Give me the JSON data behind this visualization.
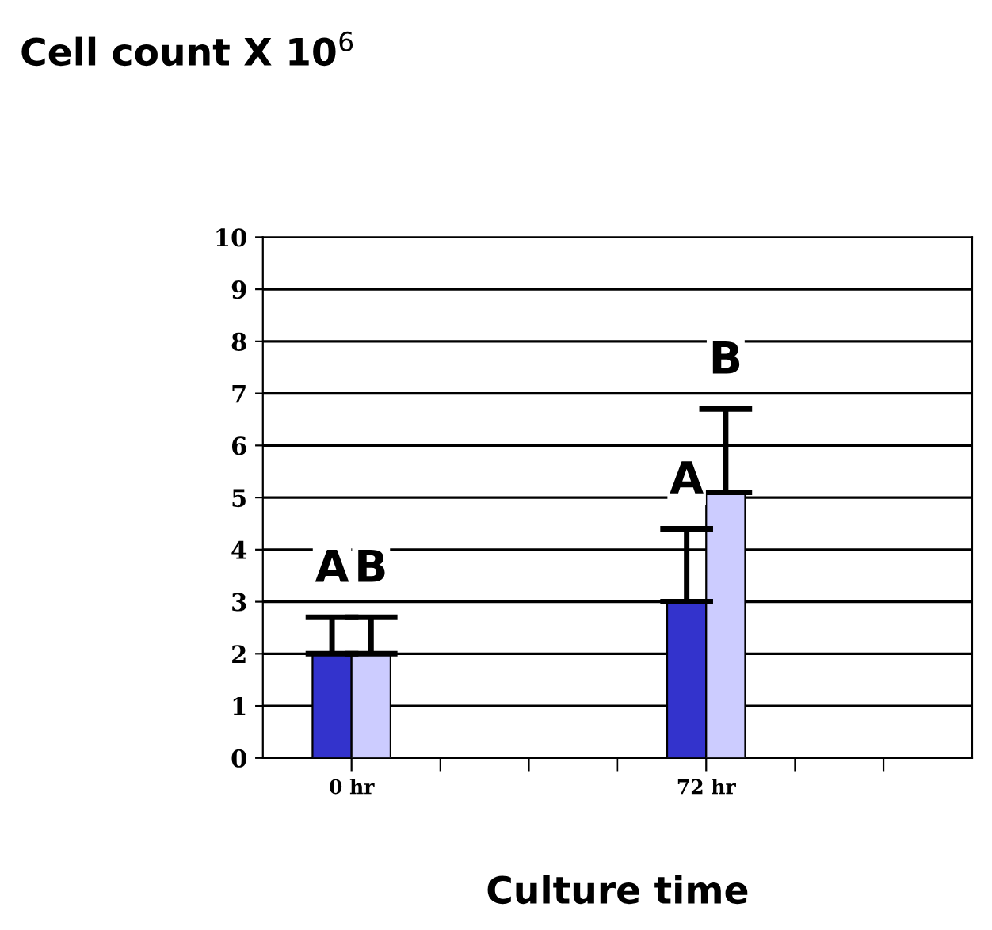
{
  "chart_data": {
    "type": "bar",
    "ylabel": "Cell count X 10$^{6}$",
    "xlabel": "Culture time",
    "categories": [
      "0 hr",
      null,
      "72 hr",
      null
    ],
    "series": [
      {
        "color": "#3333cc",
        "values": [
          2.0,
          null,
          3.0,
          null
        ],
        "errors": [
          [
            2.0,
            2.7
          ],
          null,
          [
            3.0,
            4.4
          ],
          null
        ]
      },
      {
        "color": "#ccccff",
        "values": [
          2.0,
          null,
          5.1,
          null
        ],
        "errors": [
          [
            2.0,
            2.7
          ],
          null,
          [
            5.1,
            6.7
          ],
          null
        ]
      }
    ],
    "ylim": [
      0,
      10
    ],
    "yticks": [
      0,
      1,
      2,
      3,
      4,
      5,
      6,
      7,
      8,
      9,
      10
    ],
    "grid": "y",
    "annotations": [
      "A",
      "B",
      "A",
      "B"
    ]
  }
}
